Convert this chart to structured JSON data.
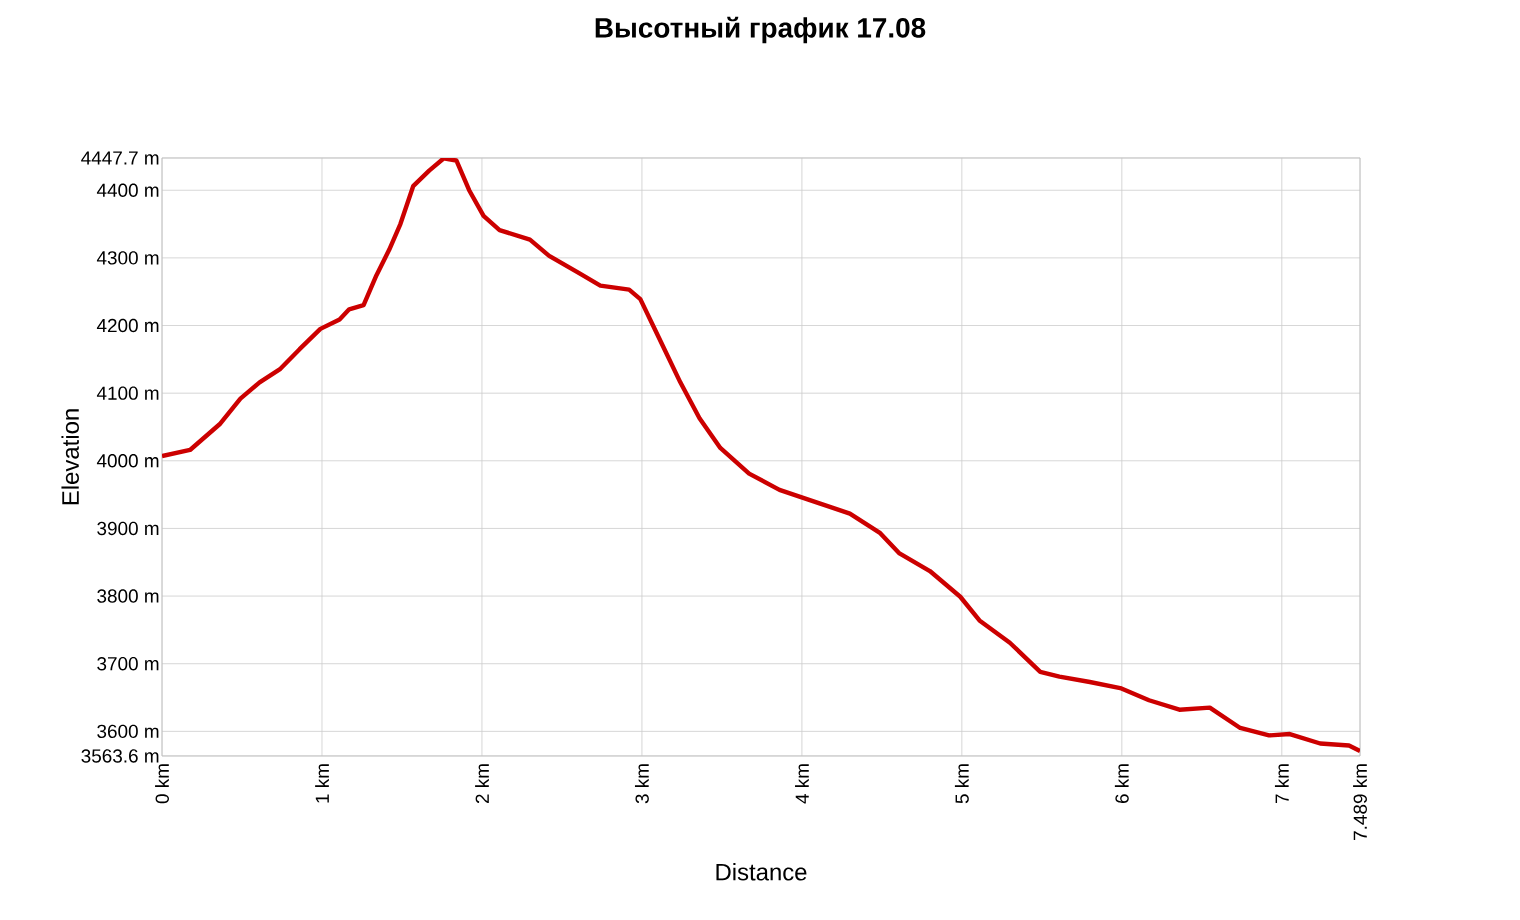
{
  "chart_data": {
    "type": "line",
    "title": "Высотный график 17.08",
    "xlabel": "Distance",
    "ylabel": "Elevation",
    "x": [
      0,
      0.175,
      0.36,
      0.49,
      0.61,
      0.74,
      0.86,
      0.99,
      1.11,
      1.17,
      1.26,
      1.34,
      1.42,
      1.49,
      1.57,
      1.67,
      1.76,
      1.84,
      1.92,
      2.01,
      2.11,
      2.3,
      2.42,
      2.61,
      2.74,
      2.92,
      2.99,
      3.11,
      3.24,
      3.36,
      3.49,
      3.67,
      3.86,
      4.11,
      4.3,
      4.49,
      4.61,
      4.8,
      4.99,
      5.11,
      5.3,
      5.49,
      5.61,
      5.8,
      5.99,
      6.17,
      6.36,
      6.55,
      6.74,
      6.92,
      7.05,
      7.24,
      7.42,
      7.489
    ],
    "series": [
      {
        "color": "#cc0000",
        "values": [
          4007,
          4016,
          4054,
          4092,
          4116,
          4136,
          4165,
          4195,
          4209,
          4224,
          4230,
          4274,
          4312,
          4350,
          4406,
          4429,
          4447,
          4444,
          4400,
          4362,
          4341,
          4327,
          4303,
          4277,
          4259,
          4253,
          4239,
          4180,
          4116,
          4063,
          4019,
          3981,
          3957,
          3937,
          3922,
          3893,
          3863,
          3837,
          3799,
          3764,
          3731,
          3688,
          3681,
          3673,
          3664,
          3646,
          3632,
          3635,
          3605,
          3594,
          3596,
          3582,
          3579,
          3571
        ]
      }
    ],
    "xlim": [
      0,
      7.489
    ],
    "ylim": [
      3563.6,
      4447.7
    ],
    "xticks": [
      {
        "value": 0,
        "label": "0 km"
      },
      {
        "value": 1,
        "label": "1 km"
      },
      {
        "value": 2,
        "label": "2 km"
      },
      {
        "value": 3,
        "label": "3 km"
      },
      {
        "value": 4,
        "label": "4 km"
      },
      {
        "value": 5,
        "label": "5 km"
      },
      {
        "value": 6,
        "label": "6 km"
      },
      {
        "value": 7,
        "label": "7 km"
      },
      {
        "value": 7.489,
        "label": "7.489 km"
      }
    ],
    "yticks": [
      {
        "value": 3563.6,
        "label": "3563.6 m"
      },
      {
        "value": 3600,
        "label": "3600 m"
      },
      {
        "value": 3700,
        "label": "3700 m"
      },
      {
        "value": 3800,
        "label": "3800 m"
      },
      {
        "value": 3900,
        "label": "3900 m"
      },
      {
        "value": 4000,
        "label": "4000 m"
      },
      {
        "value": 4100,
        "label": "4100 m"
      },
      {
        "value": 4200,
        "label": "4200 m"
      },
      {
        "value": 4300,
        "label": "4300 m"
      },
      {
        "value": 4400,
        "label": "4400 m"
      },
      {
        "value": 4447.7,
        "label": "4447.7 m"
      }
    ],
    "grid": true,
    "marker": "none",
    "line_style": "solid"
  }
}
